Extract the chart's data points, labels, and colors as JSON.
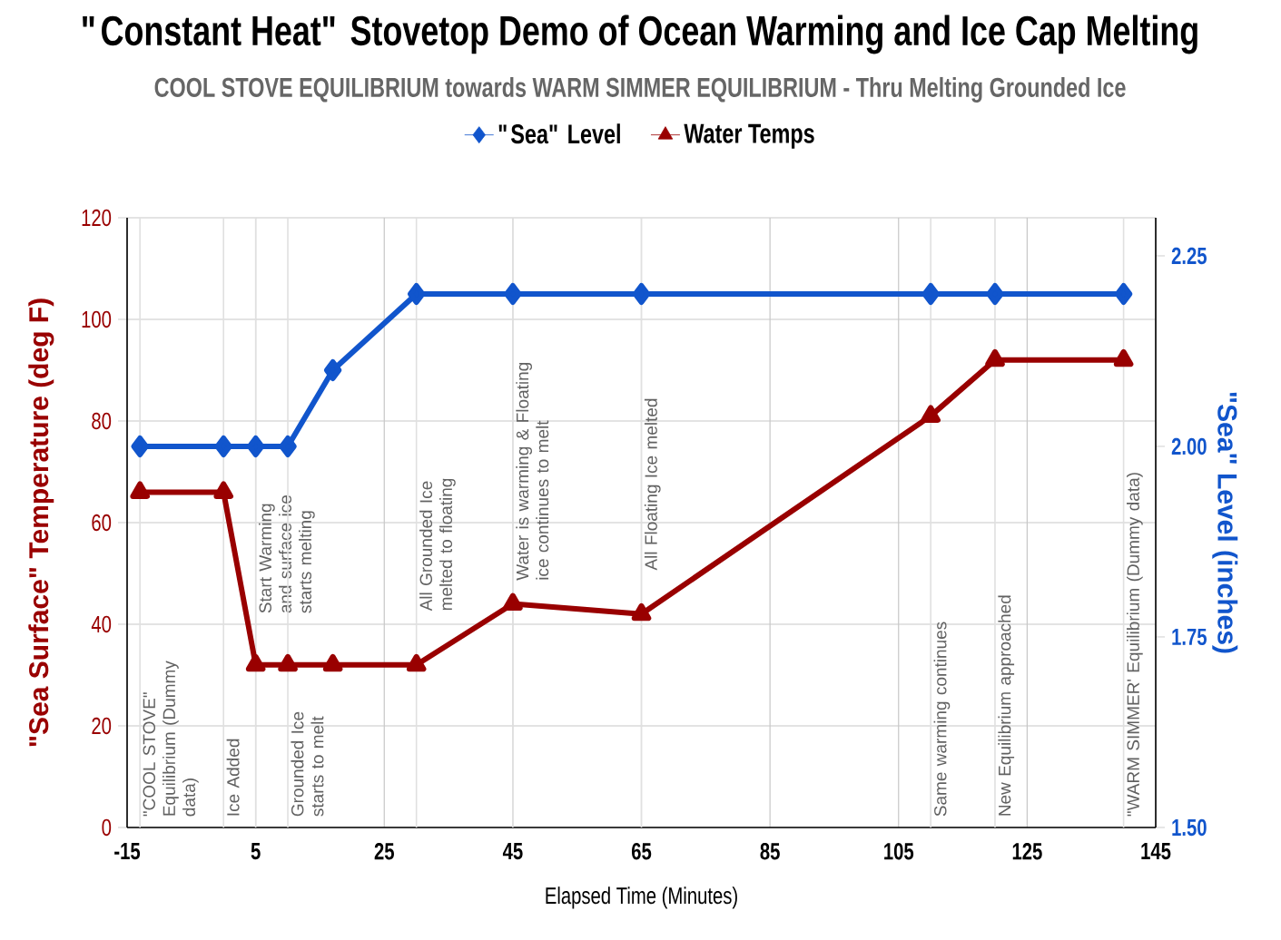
{
  "chart_data": {
    "type": "line",
    "title": "\"Constant Heat\" Stovetop Demo of Ocean Warming and Ice Cap Melting",
    "subtitle": "COOL STOVE EQUILIBRIUM towards WARM SIMMER EQUILIBRIUM - Thru Melting Grounded Ice",
    "xlabel": "Elapsed Time (Minutes)",
    "ylabel": "\"Sea Surface\" Temperature (deg F)",
    "y2label": "\"Sea\" Level (inches)",
    "x": [
      -13,
      0,
      5,
      10,
      17,
      30,
      45,
      65,
      110,
      120,
      140
    ],
    "series": [
      {
        "name": "\"Sea\" Level",
        "color": "#1155cc",
        "axis": "y2",
        "marker": "diamond",
        "values": [
          2.0,
          2.0,
          2.0,
          2.0,
          2.1,
          2.2,
          2.2,
          2.2,
          2.2,
          2.2,
          2.2
        ]
      },
      {
        "name": "Water Temps",
        "color": "#990000",
        "marker": "triangle",
        "values": [
          66,
          66,
          32,
          32,
          32,
          32,
          44,
          42,
          81,
          92,
          92
        ]
      }
    ],
    "xlim": [
      -15,
      145
    ],
    "xticks": [
      -15,
      5,
      25,
      45,
      65,
      85,
      105,
      125,
      145
    ],
    "ylim": [
      0,
      120
    ],
    "yticks": [
      0,
      20,
      40,
      60,
      80,
      100,
      120
    ],
    "y2lim": [
      1.5,
      2.3
    ],
    "y2ticks": [
      {
        "value": 1.5,
        "label": "1.50"
      },
      {
        "value": 1.75,
        "label": "1.75"
      },
      {
        "value": 2.0,
        "label": "2.00"
      },
      {
        "value": 2.25,
        "label": "2.25"
      }
    ],
    "grid": true,
    "legend": "top",
    "ref_lines": [
      {
        "axis": "x",
        "value": -13,
        "label": "\"COOL STOVE\" Equilibrium (Dummy data)",
        "color": "#e0e0e0"
      },
      {
        "axis": "x",
        "value": 0,
        "label": "Ice Added",
        "color": "#e0e0e0"
      },
      {
        "axis": "x",
        "value": 5,
        "label": "Start Warming and surface ice starts melting",
        "color": "#e0e0e0"
      },
      {
        "axis": "x",
        "value": 10,
        "label": "Grounded Ice starts to melt",
        "color": "#e0e0e0"
      },
      {
        "axis": "x",
        "value": 30,
        "label": "All Grounded Ice melted to floating",
        "color": "#e0e0e0"
      },
      {
        "axis": "x",
        "value": 45,
        "label": "Water is warming & Floating ice continues to melt",
        "color": "#e0e0e0"
      },
      {
        "axis": "x",
        "value": 65,
        "label": "All Floating Ice melted",
        "color": "#e0e0e0"
      },
      {
        "axis": "x",
        "value": 110,
        "label": "Same warming continues",
        "color": "#e0e0e0"
      },
      {
        "axis": "x",
        "value": 120,
        "label": "New Equilibrium approached",
        "color": "#e0e0e0"
      },
      {
        "axis": "x",
        "value": 140,
        "label": "\"WARM SIMMER' Equilibrium (Dummy data)",
        "color": "#e0e0e0"
      }
    ]
  }
}
